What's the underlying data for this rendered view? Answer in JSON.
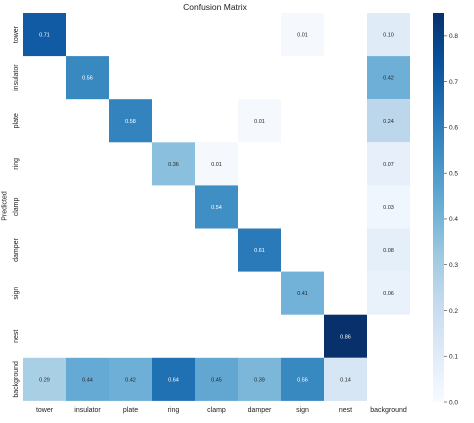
{
  "chart_data": {
    "type": "heatmap",
    "title": "Confusion Matrix",
    "xlabel": "",
    "ylabel": "Predicted",
    "x_categories": [
      "tower",
      "insulator",
      "plate",
      "ring",
      "clamp",
      "damper",
      "sign",
      "nest",
      "background"
    ],
    "y_categories": [
      "tower",
      "insulator",
      "plate",
      "ring",
      "clamp",
      "damper",
      "sign",
      "nest",
      "background"
    ],
    "cells": [
      {
        "row": 0,
        "col": 0,
        "value": 0.71
      },
      {
        "row": 0,
        "col": 6,
        "value": 0.01
      },
      {
        "row": 0,
        "col": 8,
        "value": 0.1
      },
      {
        "row": 1,
        "col": 1,
        "value": 0.56
      },
      {
        "row": 1,
        "col": 8,
        "value": 0.42
      },
      {
        "row": 2,
        "col": 2,
        "value": 0.58
      },
      {
        "row": 2,
        "col": 5,
        "value": 0.01
      },
      {
        "row": 2,
        "col": 8,
        "value": 0.24
      },
      {
        "row": 3,
        "col": 3,
        "value": 0.36
      },
      {
        "row": 3,
        "col": 4,
        "value": 0.01
      },
      {
        "row": 3,
        "col": 8,
        "value": 0.07
      },
      {
        "row": 4,
        "col": 4,
        "value": 0.54
      },
      {
        "row": 4,
        "col": 8,
        "value": 0.03
      },
      {
        "row": 5,
        "col": 5,
        "value": 0.61
      },
      {
        "row": 5,
        "col": 8,
        "value": 0.08
      },
      {
        "row": 6,
        "col": 6,
        "value": 0.41
      },
      {
        "row": 6,
        "col": 8,
        "value": 0.06
      },
      {
        "row": 7,
        "col": 7,
        "value": 0.86
      },
      {
        "row": 8,
        "col": 0,
        "value": 0.29
      },
      {
        "row": 8,
        "col": 1,
        "value": 0.44
      },
      {
        "row": 8,
        "col": 2,
        "value": 0.42
      },
      {
        "row": 8,
        "col": 3,
        "value": 0.64
      },
      {
        "row": 8,
        "col": 4,
        "value": 0.45
      },
      {
        "row": 8,
        "col": 5,
        "value": 0.39
      },
      {
        "row": 8,
        "col": 6,
        "value": 0.56
      },
      {
        "row": 8,
        "col": 7,
        "value": 0.14
      }
    ],
    "colorbar": {
      "min": 0.0,
      "max": 0.85,
      "ticks": [
        "0.0",
        "0.1",
        "0.2",
        "0.3",
        "0.4",
        "0.5",
        "0.6",
        "0.7",
        "0.8"
      ],
      "colormap": "Blues",
      "colors": [
        "#f7fbff",
        "#deebf7",
        "#c6dbef",
        "#9ecae1",
        "#6baed6",
        "#4292c6",
        "#2171b5",
        "#08519c",
        "#08306b"
      ]
    },
    "grid": false,
    "legend": "colorbar-right"
  }
}
